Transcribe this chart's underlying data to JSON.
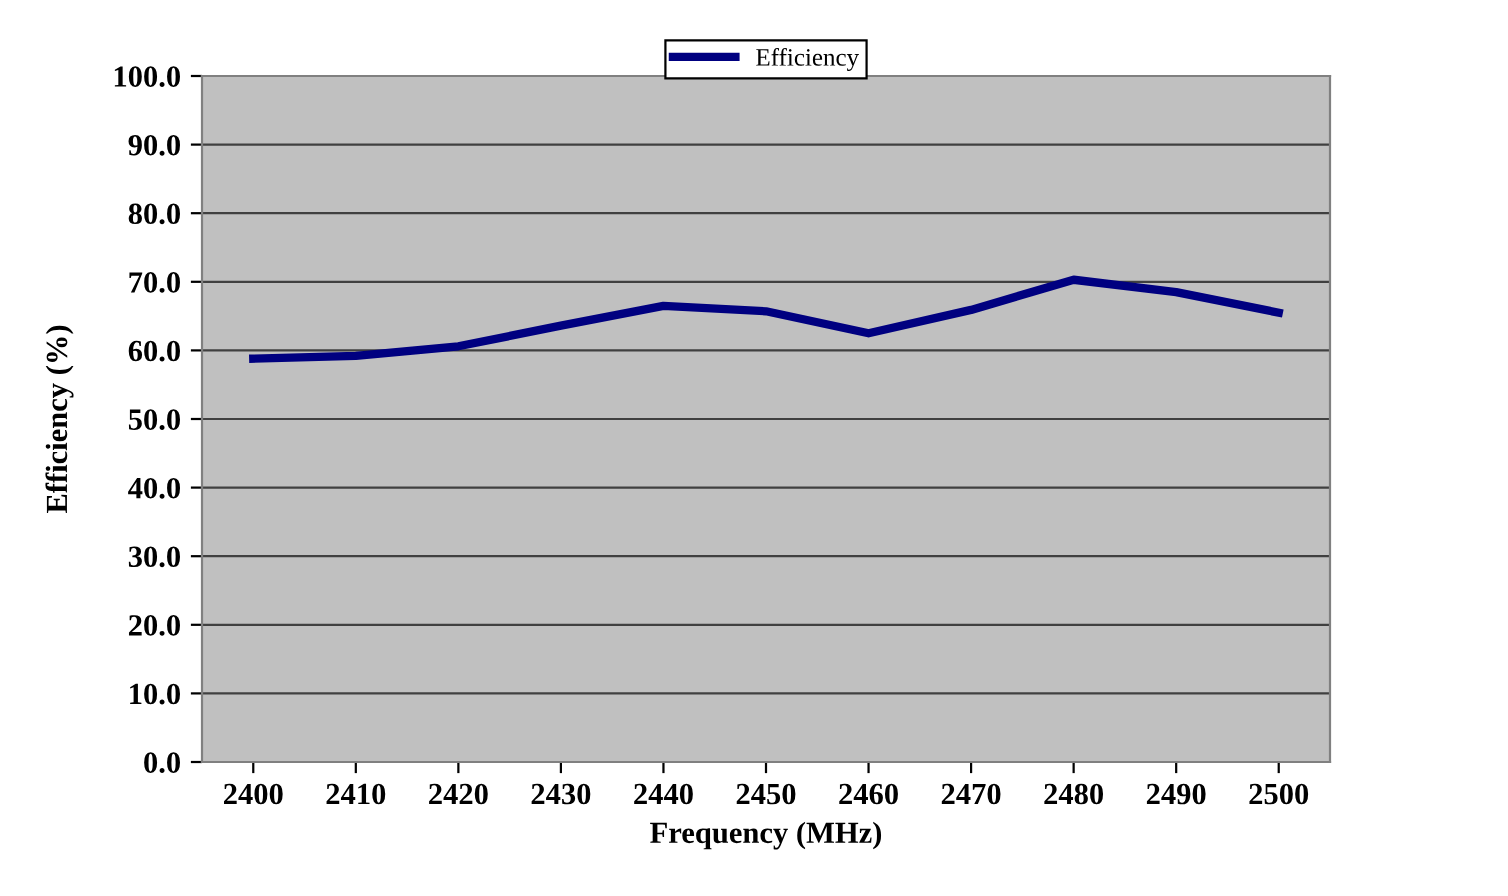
{
  "chart_data": {
    "type": "line",
    "xlabel": "Frequency (MHz)",
    "ylabel": "Efficiency (%)",
    "categories": [
      "2400",
      "2410",
      "2420",
      "2430",
      "2440",
      "2450",
      "2460",
      "2470",
      "2480",
      "2490",
      "2500"
    ],
    "series": [
      {
        "name": "Efficiency",
        "color": "#000080",
        "values": [
          58.8,
          59.2,
          60.6,
          63.6,
          66.5,
          65.7,
          62.5,
          65.9,
          70.3,
          68.5,
          65.5
        ]
      }
    ],
    "ylim": [
      0,
      100
    ],
    "yticks": [
      {
        "value": 0,
        "label": "0.0"
      },
      {
        "value": 10,
        "label": "10.0"
      },
      {
        "value": 20,
        "label": "20.0"
      },
      {
        "value": 30,
        "label": "30.0"
      },
      {
        "value": 40,
        "label": "40.0"
      },
      {
        "value": 50,
        "label": "50.0"
      },
      {
        "value": 60,
        "label": "60.0"
      },
      {
        "value": 70,
        "label": "70.0"
      },
      {
        "value": 80,
        "label": "80.0"
      },
      {
        "value": 90,
        "label": "90.0"
      },
      {
        "value": 100,
        "label": "100.0"
      }
    ],
    "grid": "y",
    "legend": "top",
    "line_style": "solid",
    "marker": "none"
  }
}
